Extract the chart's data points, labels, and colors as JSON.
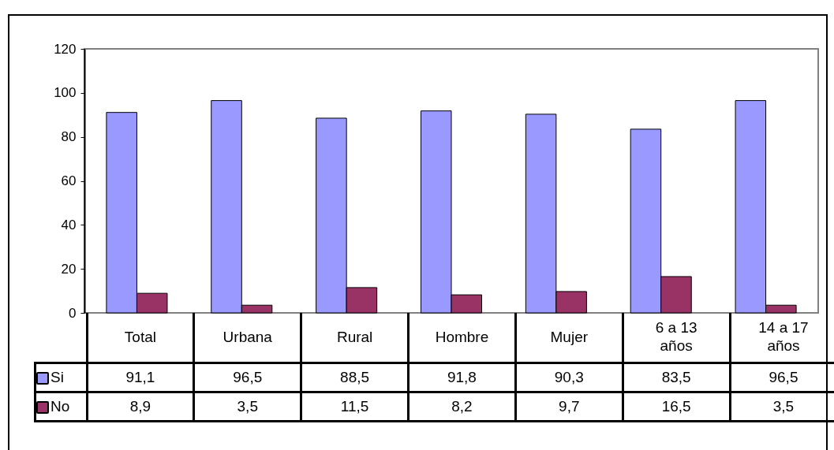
{
  "chart_data": {
    "type": "bar",
    "categories": [
      "Total",
      "Urbana",
      "Rural",
      "Hombre",
      "Mujer",
      "6 a 13 años",
      "14 a 17 años"
    ],
    "series": [
      {
        "name": "Si",
        "color": "#9999ff",
        "values": [
          91.1,
          96.5,
          88.5,
          91.8,
          90.3,
          83.5,
          96.5
        ],
        "value_labels": [
          "91,1",
          "96,5",
          "88,5",
          "91,8",
          "90,3",
          "83,5",
          "96,5"
        ]
      },
      {
        "name": "No",
        "color": "#993366",
        "values": [
          8.9,
          3.5,
          11.5,
          8.2,
          9.7,
          16.5,
          3.5
        ],
        "value_labels": [
          "8,9",
          "3,5",
          "11,5",
          "8,2",
          "9,7",
          "16,5",
          "3,5"
        ]
      }
    ],
    "ylim": [
      0,
      120
    ],
    "yticks": [
      0,
      20,
      40,
      60,
      80,
      100,
      120
    ],
    "legend": "bottom"
  }
}
